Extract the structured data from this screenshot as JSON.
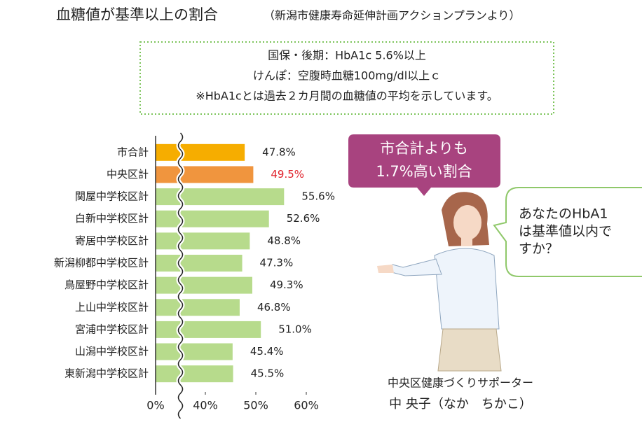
{
  "chart_data": {
    "type": "bar",
    "orientation": "horizontal",
    "title": "血糖値が基準以上の割合",
    "subtitle": "（新潟市健康寿命延伸計画アクションプランより）",
    "notes": [
      "国保・後期：HbA1c 5.6%以上",
      "けんぽ：空腹時血糖100mg/dl以上ｃ",
      "※HbA1cとは過去２カ月間の血糖値の平均を示しています。"
    ],
    "categories": [
      "市合計",
      "中央区計",
      "関屋中学校区計",
      "白新中学校区計",
      "寄居中学校区計",
      "新潟柳都中学校区計",
      "鳥屋野中学校区計",
      "上山中学校区計",
      "宮浦中学校区計",
      "山潟中学校区計",
      "東新潟中学校区計"
    ],
    "values": [
      47.8,
      49.5,
      55.6,
      52.6,
      48.8,
      47.3,
      49.3,
      46.8,
      51.0,
      45.4,
      45.5
    ],
    "value_labels": [
      "47.8%",
      "49.5%",
      "55.6%",
      "52.6%",
      "48.8%",
      "47.3%",
      "49.3%",
      "46.8%",
      "51.0%",
      "45.4%",
      "45.5%"
    ],
    "colors": [
      "#f6ad00",
      "#f0953e",
      "#b7db8c",
      "#b7db8c",
      "#b7db8c",
      "#b7db8c",
      "#b7db8c",
      "#b7db8c",
      "#b7db8c",
      "#b7db8c",
      "#b7db8c"
    ],
    "value_label_colors": [
      "#222222",
      "#e0202a",
      "#222222",
      "#222222",
      "#222222",
      "#222222",
      "#222222",
      "#222222",
      "#222222",
      "#222222",
      "#222222"
    ],
    "xlim": [
      0,
      60
    ],
    "axis_break": [
      0,
      40
    ],
    "xticks": [
      {
        "value": 0,
        "label": "0%"
      },
      {
        "value": 40,
        "label": "40%"
      },
      {
        "value": 50,
        "label": "50%"
      },
      {
        "value": 60,
        "label": "60%"
      }
    ]
  },
  "callout": [
    "市合計よりも",
    "1.7%高い割合"
  ],
  "speech": [
    "あなたのHbA1",
    "は基準値以内で",
    "すか？"
  ],
  "caption": [
    "中央区健康づくりサポーター",
    "中 央子（なか　ちかこ）"
  ]
}
